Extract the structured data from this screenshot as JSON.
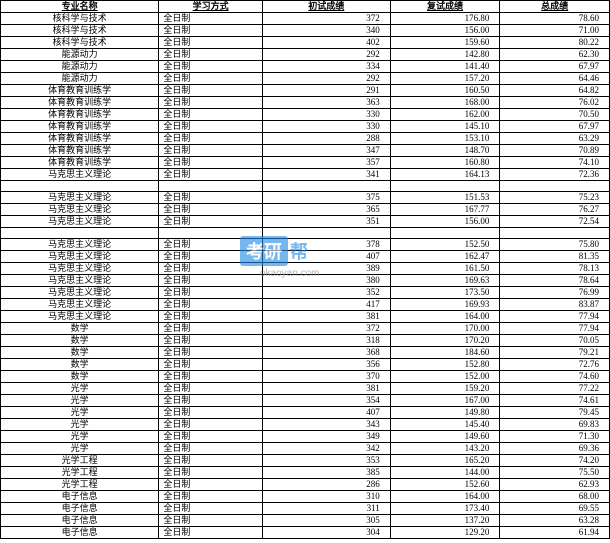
{
  "headers": [
    "专业名称",
    "学习方式",
    "初试成绩",
    "复试成绩",
    "总成绩"
  ],
  "watermark": {
    "logo_text": "考研",
    "url_text": "okaoyan.com",
    "logo_bg": "#1e88e5",
    "logo_color": "#ffffff",
    "text_color": "#1e88e5"
  },
  "empty_after": {
    "14": true,
    "17": true
  },
  "rows": [
    {
      "major": "核科学与技术",
      "mode": "全日制",
      "s1": "372",
      "s2": "176.80",
      "total": "78.60"
    },
    {
      "major": "核科学与技术",
      "mode": "全日制",
      "s1": "340",
      "s2": "156.00",
      "total": "71.00"
    },
    {
      "major": "核科学与技术",
      "mode": "全日制",
      "s1": "402",
      "s2": "159.60",
      "total": "80.22"
    },
    {
      "major": "能源动力",
      "mode": "全日制",
      "s1": "292",
      "s2": "142.80",
      "total": "62.30"
    },
    {
      "major": "能源动力",
      "mode": "全日制",
      "s1": "334",
      "s2": "141.40",
      "total": "67.97"
    },
    {
      "major": "能源动力",
      "mode": "全日制",
      "s1": "292",
      "s2": "157.20",
      "total": "64.46"
    },
    {
      "major": "体育教育训练学",
      "mode": "全日制",
      "s1": "291",
      "s2": "160.50",
      "total": "64.82"
    },
    {
      "major": "体育教育训练学",
      "mode": "全日制",
      "s1": "363",
      "s2": "168.00",
      "total": "76.02"
    },
    {
      "major": "体育教育训练学",
      "mode": "全日制",
      "s1": "330",
      "s2": "162.00",
      "total": "70.50"
    },
    {
      "major": "体育教育训练学",
      "mode": "全日制",
      "s1": "330",
      "s2": "145.10",
      "total": "67.97"
    },
    {
      "major": "体育教育训练学",
      "mode": "全日制",
      "s1": "288",
      "s2": "153.10",
      "total": "63.29"
    },
    {
      "major": "体育教育训练学",
      "mode": "全日制",
      "s1": "347",
      "s2": "148.70",
      "total": "70.89"
    },
    {
      "major": "体育教育训练学",
      "mode": "全日制",
      "s1": "357",
      "s2": "160.80",
      "total": "74.10"
    },
    {
      "major": "马克思主义理论",
      "mode": "全日制",
      "s1": "341",
      "s2": "164.13",
      "total": "72.36"
    },
    {
      "major": "马克思主义理论",
      "mode": "全日制",
      "s1": "375",
      "s2": "151.53",
      "total": "75.23"
    },
    {
      "major": "马克思主义理论",
      "mode": "全日制",
      "s1": "365",
      "s2": "167.77",
      "total": "76.27"
    },
    {
      "major": "马克思主义理论",
      "mode": "全日制",
      "s1": "351",
      "s2": "156.00",
      "total": "72.54"
    },
    {
      "major": "马克思主义理论",
      "mode": "全日制",
      "s1": "378",
      "s2": "152.50",
      "total": "75.80"
    },
    {
      "major": "马克思主义理论",
      "mode": "全日制",
      "s1": "407",
      "s2": "162.47",
      "total": "81.35"
    },
    {
      "major": "马克思主义理论",
      "mode": "全日制",
      "s1": "389",
      "s2": "161.50",
      "total": "78.13"
    },
    {
      "major": "马克思主义理论",
      "mode": "全日制",
      "s1": "380",
      "s2": "169.63",
      "total": "78.64"
    },
    {
      "major": "马克思主义理论",
      "mode": "全日制",
      "s1": "352",
      "s2": "173.50",
      "total": "76.99"
    },
    {
      "major": "马克思主义理论",
      "mode": "全日制",
      "s1": "417",
      "s2": "169.93",
      "total": "83.87"
    },
    {
      "major": "马克思主义理论",
      "mode": "全日制",
      "s1": "381",
      "s2": "164.00",
      "total": "77.94"
    },
    {
      "major": "数学",
      "mode": "全日制",
      "s1": "372",
      "s2": "170.00",
      "total": "77.94"
    },
    {
      "major": "数学",
      "mode": "全日制",
      "s1": "318",
      "s2": "170.20",
      "total": "70.05"
    },
    {
      "major": "数学",
      "mode": "全日制",
      "s1": "368",
      "s2": "184.60",
      "total": "79.21"
    },
    {
      "major": "数学",
      "mode": "全日制",
      "s1": "356",
      "s2": "152.80",
      "total": "72.76"
    },
    {
      "major": "数学",
      "mode": "全日制",
      "s1": "370",
      "s2": "152.00",
      "total": "74.60"
    },
    {
      "major": "光学",
      "mode": "全日制",
      "s1": "381",
      "s2": "159.20",
      "total": "77.22"
    },
    {
      "major": "光学",
      "mode": "全日制",
      "s1": "354",
      "s2": "167.00",
      "total": "74.61"
    },
    {
      "major": "光学",
      "mode": "全日制",
      "s1": "407",
      "s2": "149.80",
      "total": "79.45"
    },
    {
      "major": "光学",
      "mode": "全日制",
      "s1": "343",
      "s2": "145.40",
      "total": "69.83"
    },
    {
      "major": "光学",
      "mode": "全日制",
      "s1": "349",
      "s2": "149.60",
      "total": "71.30"
    },
    {
      "major": "光学",
      "mode": "全日制",
      "s1": "342",
      "s2": "143.20",
      "total": "69.36"
    },
    {
      "major": "光学工程",
      "mode": "全日制",
      "s1": "353",
      "s2": "165.20",
      "total": "74.20"
    },
    {
      "major": "光学工程",
      "mode": "全日制",
      "s1": "385",
      "s2": "144.00",
      "total": "75.50"
    },
    {
      "major": "光学工程",
      "mode": "全日制",
      "s1": "286",
      "s2": "152.60",
      "total": "62.93"
    },
    {
      "major": "电子信息",
      "mode": "全日制",
      "s1": "310",
      "s2": "164.00",
      "total": "68.00"
    },
    {
      "major": "电子信息",
      "mode": "全日制",
      "s1": "311",
      "s2": "173.40",
      "total": "69.55"
    },
    {
      "major": "电子信息",
      "mode": "全日制",
      "s1": "305",
      "s2": "137.20",
      "total": "63.28"
    },
    {
      "major": "电子信息",
      "mode": "全日制",
      "s1": "304",
      "s2": "129.20",
      "total": "61.94"
    }
  ]
}
